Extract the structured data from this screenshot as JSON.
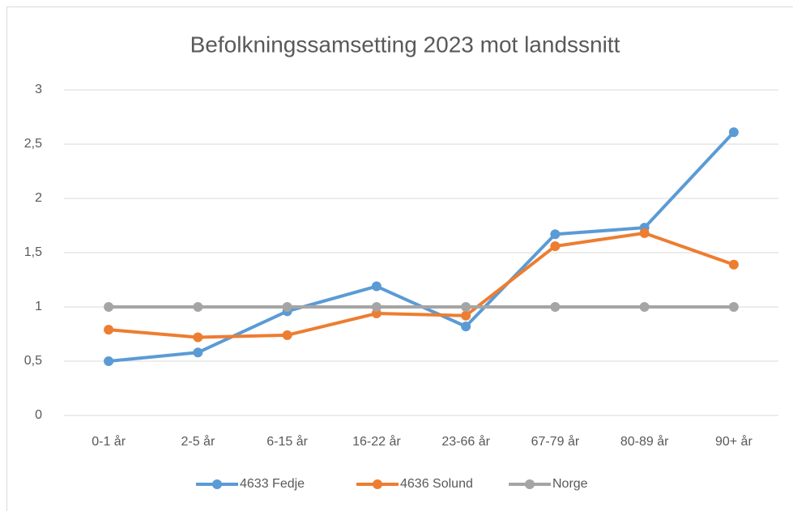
{
  "chart_data": {
    "type": "line",
    "title": "Befolkningssamsetting 2023 mot landssnitt",
    "categories": [
      "0-1 år",
      "2-5 år",
      "6-15 år",
      "16-22 år",
      "23-66 år",
      "67-79 år",
      "80-89 år",
      "90+ år"
    ],
    "series": [
      {
        "name": "4633 Fedje",
        "color": "#5b9bd5",
        "values": [
          0.5,
          0.58,
          0.96,
          1.19,
          0.82,
          1.67,
          1.73,
          2.61
        ]
      },
      {
        "name": "4636 Solund",
        "color": "#ed7d31",
        "values": [
          0.79,
          0.72,
          0.74,
          0.94,
          0.92,
          1.56,
          1.68,
          1.39
        ]
      },
      {
        "name": "Norge",
        "color": "#a5a5a5",
        "values": [
          1,
          1,
          1,
          1,
          1,
          1,
          1,
          1
        ]
      }
    ],
    "ylim": [
      0,
      3
    ],
    "yticks": [
      0,
      {
        "value": 0.5,
        "label": "0,5"
      },
      1,
      {
        "value": 1.5,
        "label": "1,5"
      },
      2,
      {
        "value": 2.5,
        "label": "2,5"
      },
      3
    ],
    "grid": true,
    "legend": "bottom"
  }
}
